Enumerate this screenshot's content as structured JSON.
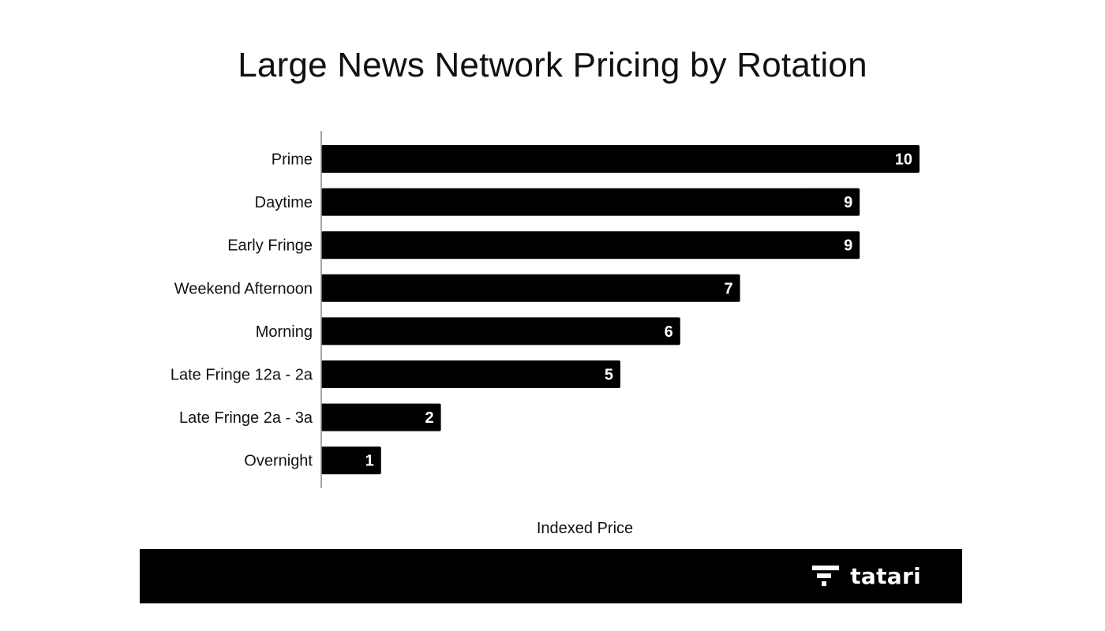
{
  "chart_data": {
    "type": "bar",
    "orientation": "horizontal",
    "title": "Large News Network Pricing by Rotation",
    "xlabel": "Indexed Price",
    "ylabel": "",
    "categories": [
      "Prime",
      "Daytime",
      "Early Fringe",
      "Weekend Afternoon",
      "Morning",
      "Late Fringe 12a - 2a",
      "Late Fringe 2a - 3a",
      "Overnight"
    ],
    "values": [
      10,
      9,
      9,
      7,
      6,
      5,
      2,
      1
    ],
    "data_labels": [
      "10",
      "9",
      "9",
      "7",
      "6",
      "5",
      "2",
      "1"
    ],
    "xlim": [
      0,
      10
    ],
    "grid": false,
    "legend": "none",
    "bar_color": "#000000",
    "label_color": "#ffffff"
  },
  "brand": {
    "name": "tatari",
    "icon": "tatari-logo-icon"
  },
  "colors": {
    "footer": "#000000",
    "text": "#111111",
    "axis": "#888888"
  }
}
